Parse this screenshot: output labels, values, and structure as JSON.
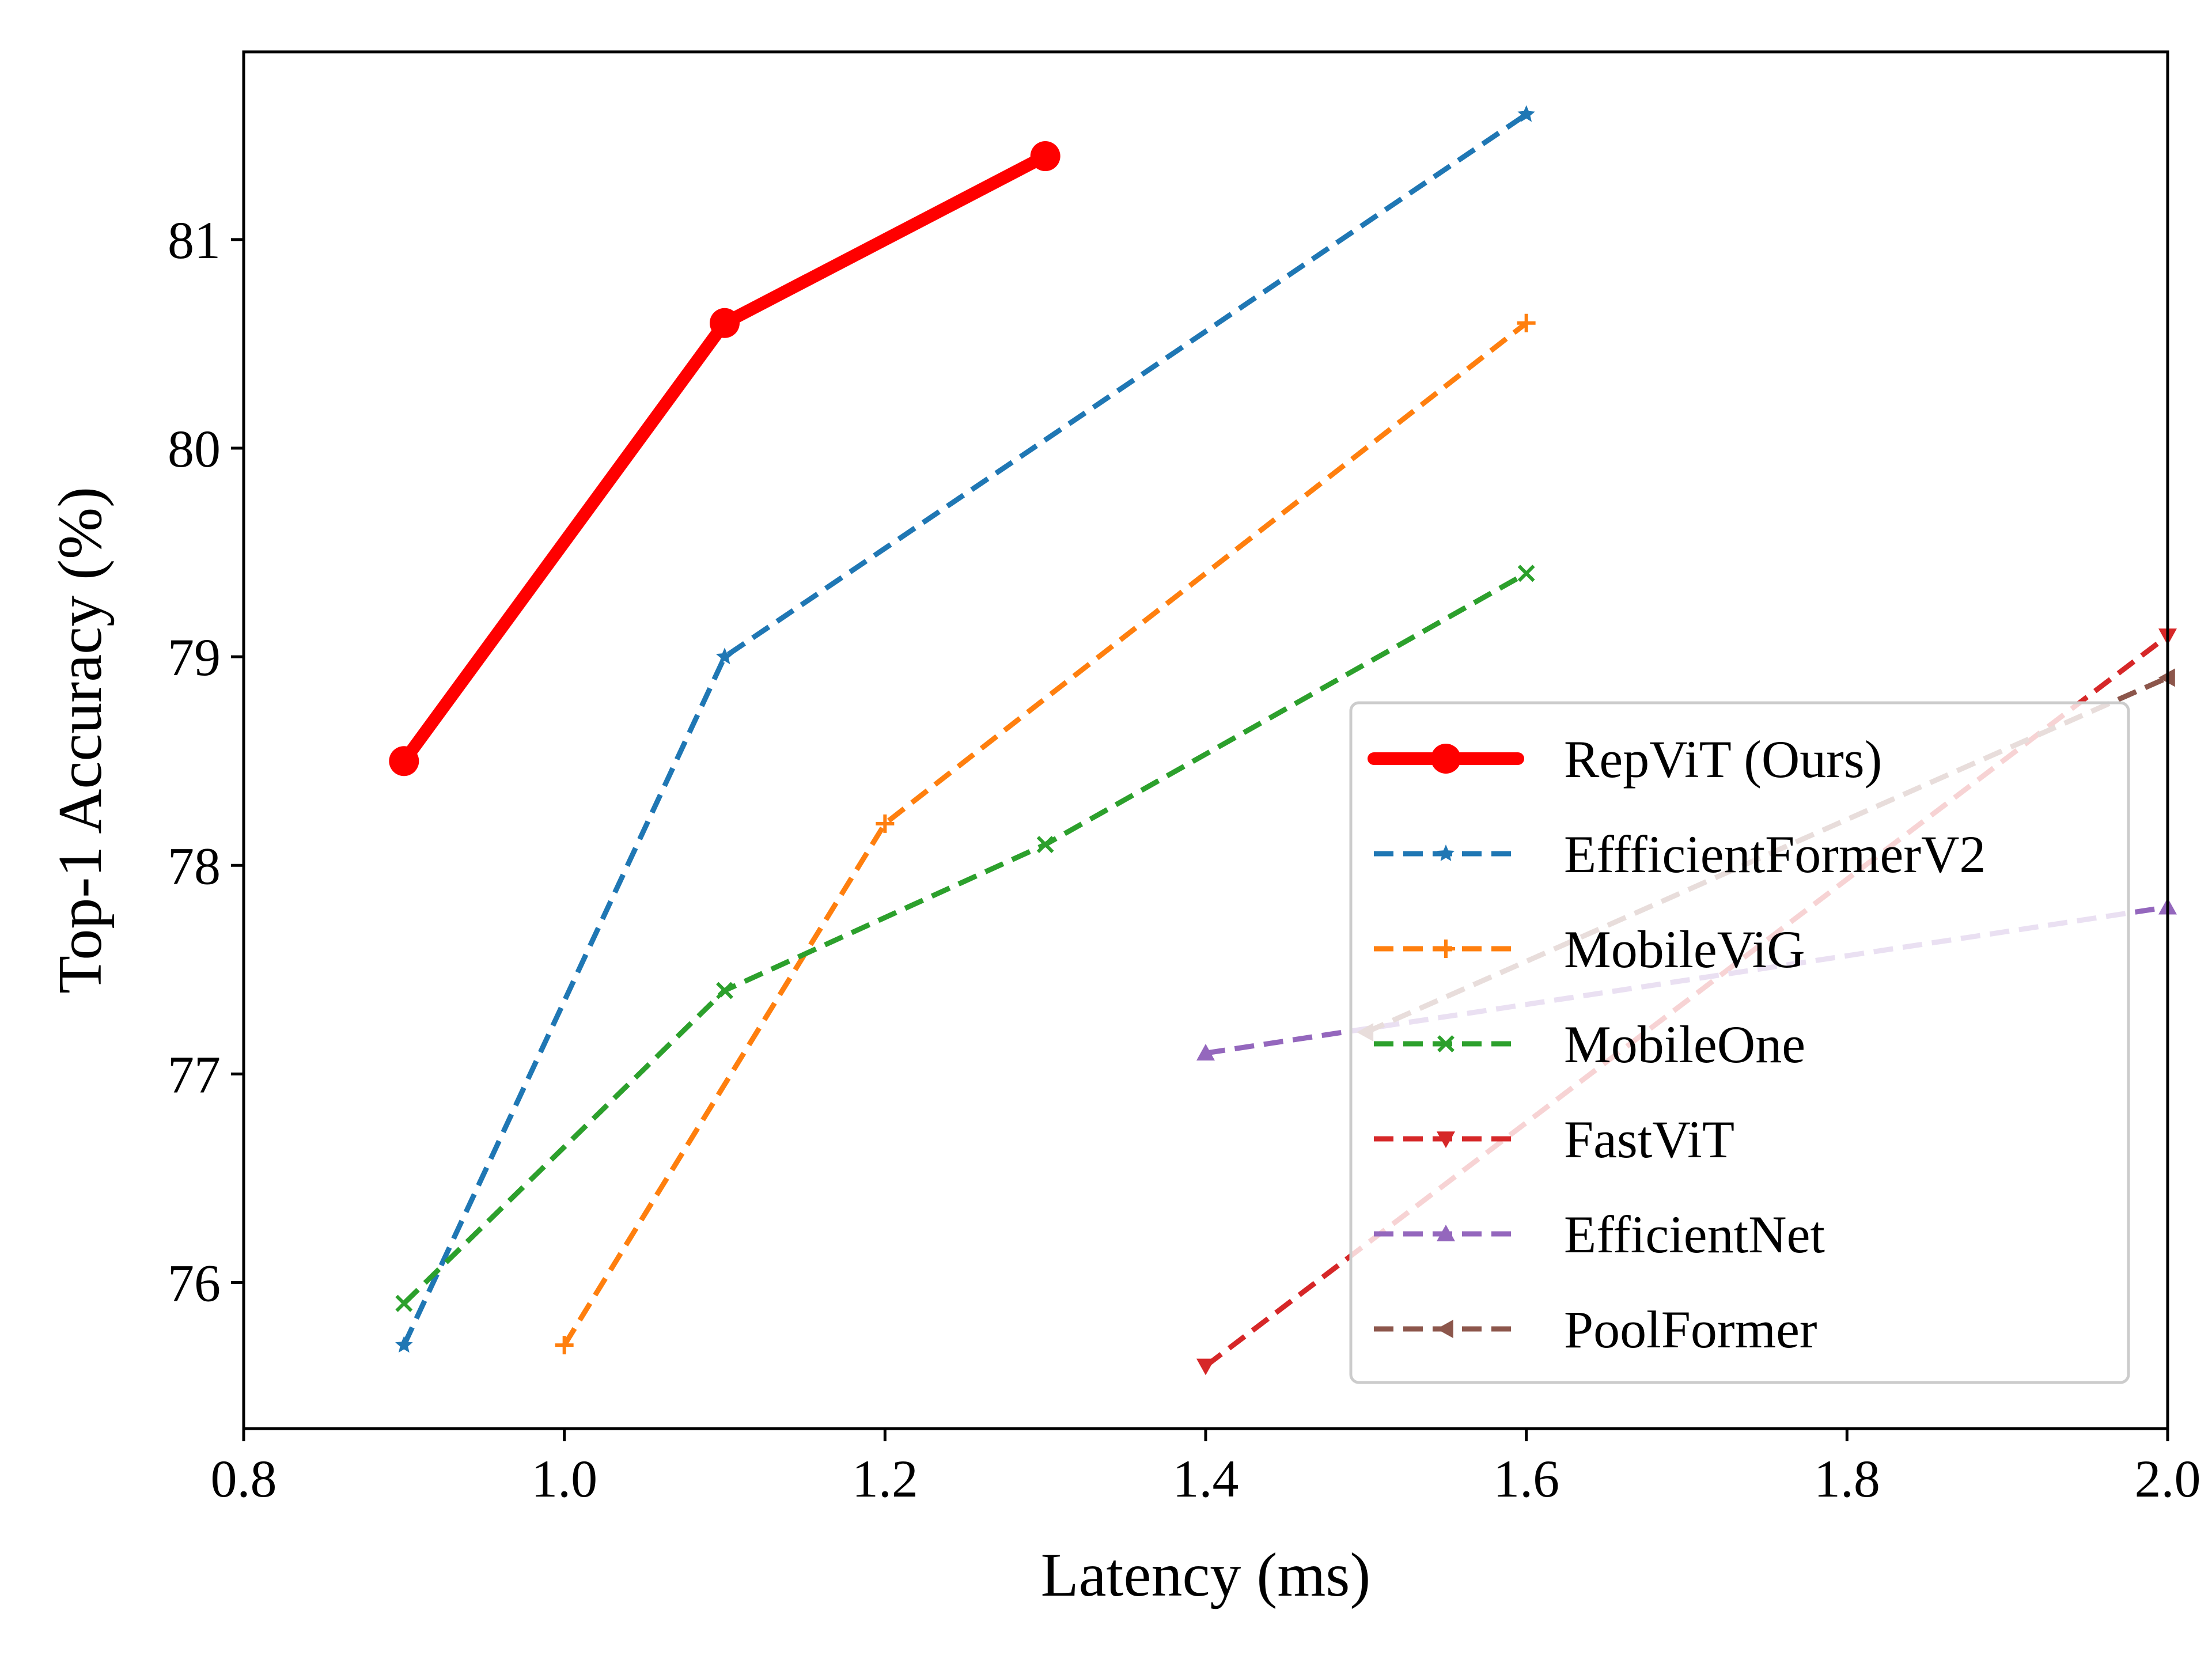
{
  "chart_data": {
    "type": "line",
    "title": "",
    "xlabel": "Latency (ms)",
    "ylabel": "Top-1 Accuracy (%)",
    "xlim": [
      0.8,
      2.0
    ],
    "ylim": [
      75.3,
      81.9
    ],
    "xticks": [
      "0.8",
      "1.0",
      "1.2",
      "1.4",
      "1.6",
      "1.8",
      "2.0"
    ],
    "xtick_values": [
      0.8,
      1.0,
      1.2,
      1.4,
      1.6,
      1.8,
      2.0
    ],
    "yticks": [
      "76",
      "77",
      "78",
      "79",
      "80",
      "81"
    ],
    "ytick_values": [
      76,
      77,
      78,
      79,
      80,
      81
    ],
    "grid": false,
    "legend_position": "lower-right",
    "series": [
      {
        "name": "RepViT (Ours)",
        "color": "#ff0000",
        "marker": "circle",
        "linestyle": "solid",
        "x": [
          0.9,
          1.1,
          1.3
        ],
        "y": [
          78.5,
          80.6,
          81.4
        ]
      },
      {
        "name": "EffficientFormerV2",
        "color": "#1f77b4",
        "marker": "star",
        "linestyle": "dashed",
        "x": [
          0.9,
          1.1,
          1.6
        ],
        "y": [
          75.7,
          79.0,
          81.6
        ]
      },
      {
        "name": "MobileViG",
        "color": "#ff7f0e",
        "marker": "plus",
        "linestyle": "dashed",
        "x": [
          1.0,
          1.2,
          1.6
        ],
        "y": [
          75.7,
          78.2,
          80.6
        ]
      },
      {
        "name": "MobileOne",
        "color": "#2ca02c",
        "marker": "x",
        "linestyle": "dashed",
        "x": [
          0.9,
          1.1,
          1.3,
          1.6
        ],
        "y": [
          75.9,
          77.4,
          78.1,
          79.4
        ]
      },
      {
        "name": "FastViT",
        "color": "#d62728",
        "marker": "triangle-down",
        "linestyle": "dashed",
        "x": [
          1.4,
          2.0
        ],
        "y": [
          75.6,
          79.1
        ]
      },
      {
        "name": "EfficientNet",
        "color": "#9467bd",
        "marker": "triangle-up",
        "linestyle": "dashed",
        "x": [
          1.4,
          2.0
        ],
        "y": [
          77.1,
          77.8
        ]
      },
      {
        "name": "PoolFormer",
        "color": "#8c564b",
        "marker": "triangle-left",
        "linestyle": "dashed",
        "x": [
          1.5,
          2.0
        ],
        "y": [
          77.2,
          78.9
        ]
      }
    ]
  }
}
